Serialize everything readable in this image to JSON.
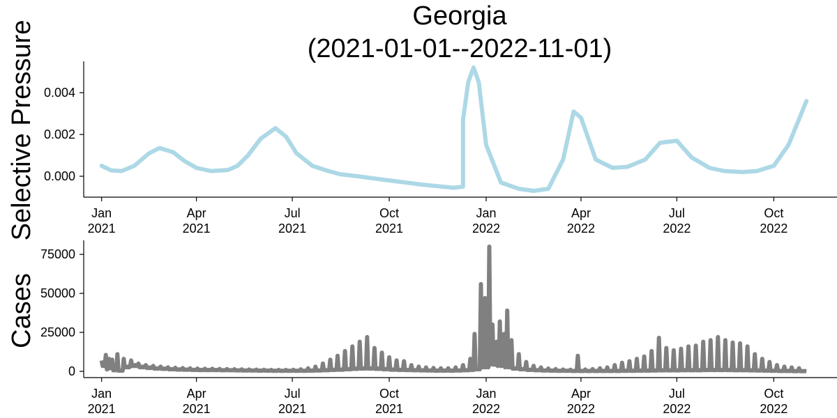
{
  "title": "Georgia",
  "subtitle": "(2021-01-01--2022-11-01)",
  "chart_data": [
    {
      "type": "line",
      "ylabel": "Selective Pressure",
      "ylim": [
        -0.001,
        0.0055
      ],
      "xlim": [
        "2020-12-15",
        "2022-11-30"
      ],
      "yticks": [
        0.0,
        0.002,
        0.004
      ],
      "ytick_labels": [
        "0.000",
        "0.002",
        "0.004"
      ],
      "xticks": [
        "2021-01-01",
        "2021-04-01",
        "2021-07-01",
        "2021-10-01",
        "2022-01-01",
        "2022-04-01",
        "2022-07-01",
        "2022-10-01"
      ],
      "xtick_labels": [
        [
          "Jan",
          "2021"
        ],
        [
          "Apr",
          "2021"
        ],
        [
          "Jul",
          "2021"
        ],
        [
          "Oct",
          "2021"
        ],
        [
          "Jan",
          "2022"
        ],
        [
          "Apr",
          "2022"
        ],
        [
          "Jul",
          "2022"
        ],
        [
          "Oct",
          "2022"
        ]
      ],
      "color": "#add8e6",
      "series": [
        {
          "x": [
            "2021-01-01",
            "2021-01-10",
            "2021-01-20",
            "2021-02-01",
            "2021-02-15",
            "2021-02-25",
            "2021-03-10",
            "2021-03-20",
            "2021-04-01",
            "2021-04-15",
            "2021-05-01",
            "2021-05-10",
            "2021-05-20",
            "2021-06-01",
            "2021-06-15",
            "2021-06-25",
            "2021-07-05",
            "2021-07-20",
            "2021-08-01",
            "2021-08-15",
            "2021-09-01",
            "2021-10-01",
            "2021-11-01",
            "2021-12-01",
            "2021-12-10",
            "2021-12-10",
            "2021-12-15",
            "2021-12-20",
            "2021-12-25",
            "2022-01-01",
            "2022-01-15",
            "2022-02-01",
            "2022-02-15",
            "2022-03-01",
            "2022-03-15",
            "2022-03-25",
            "2022-04-01",
            "2022-04-15",
            "2022-05-01",
            "2022-05-15",
            "2022-06-01",
            "2022-06-15",
            "2022-07-01",
            "2022-07-15",
            "2022-08-01",
            "2022-08-15",
            "2022-09-01",
            "2022-09-15",
            "2022-10-01",
            "2022-10-15",
            "2022-11-01"
          ],
          "y": [
            0.0005,
            0.00028,
            0.00025,
            0.0005,
            0.0011,
            0.00135,
            0.00115,
            0.00075,
            0.0004,
            0.00025,
            0.0003,
            0.0005,
            0.001,
            0.0018,
            0.0023,
            0.0019,
            0.0011,
            0.0005,
            0.0003,
            0.0001,
            0.0,
            -0.0002,
            -0.0004,
            -0.00055,
            -0.0005,
            0.0027,
            0.0045,
            0.0052,
            0.0045,
            0.0015,
            -0.0003,
            -0.0006,
            -0.0007,
            -0.0006,
            0.0008,
            0.0031,
            0.0028,
            0.0008,
            0.0004,
            0.00045,
            0.0008,
            0.0016,
            0.0017,
            0.0009,
            0.0004,
            0.00025,
            0.0002,
            0.00025,
            0.0005,
            0.0015,
            0.0036
          ]
        }
      ]
    },
    {
      "type": "line",
      "ylabel": "Cases",
      "ylim": [
        -4000,
        84000
      ],
      "xlim": [
        "2020-12-15",
        "2022-11-30"
      ],
      "yticks": [
        0,
        25000,
        50000,
        75000
      ],
      "ytick_labels": [
        "0",
        "25000",
        "50000",
        "75000"
      ],
      "xticks": [
        "2021-01-01",
        "2021-04-01",
        "2021-07-01",
        "2021-10-01",
        "2022-01-01",
        "2022-04-01",
        "2022-07-01",
        "2022-10-01"
      ],
      "xtick_labels": [
        [
          "Jan",
          "2021"
        ],
        [
          "Apr",
          "2021"
        ],
        [
          "Jul",
          "2021"
        ],
        [
          "Oct",
          "2021"
        ],
        [
          "Jan",
          "2022"
        ],
        [
          "Apr",
          "2022"
        ],
        [
          "Jul",
          "2022"
        ],
        [
          "Oct",
          "2022"
        ]
      ],
      "color": "#808080",
      "start": "2021-01-01",
      "end": "2022-11-01",
      "spikes": [
        [
          "2021-01-01",
          7000,
          4000
        ],
        [
          "2021-01-05",
          10500,
          1500
        ],
        [
          "2021-01-08",
          8000,
          2500
        ],
        [
          "2021-01-11",
          7500,
          800
        ],
        [
          "2021-01-16",
          11000,
          500
        ],
        [
          "2021-01-22",
          8000,
          3000
        ],
        [
          "2021-01-29",
          7000,
          4000
        ],
        [
          "2021-02-05",
          5000,
          3000
        ],
        [
          "2021-02-12",
          4000,
          2500
        ],
        [
          "2021-02-19",
          3500,
          2000
        ],
        [
          "2021-02-26",
          3000,
          1800
        ],
        [
          "2021-03-05",
          2600,
          1500
        ],
        [
          "2021-03-12",
          2300,
          1300
        ],
        [
          "2021-03-19",
          2100,
          1200
        ],
        [
          "2021-03-26",
          2000,
          1000
        ],
        [
          "2021-04-02",
          1800,
          900
        ],
        [
          "2021-04-09",
          1700,
          900
        ],
        [
          "2021-04-16",
          1700,
          900
        ],
        [
          "2021-04-23",
          1600,
          800
        ],
        [
          "2021-04-30",
          1500,
          800
        ],
        [
          "2021-05-07",
          1400,
          700
        ],
        [
          "2021-05-14",
          1300,
          600
        ],
        [
          "2021-05-21",
          1200,
          600
        ],
        [
          "2021-05-28",
          1100,
          500
        ],
        [
          "2021-06-04",
          1000,
          500
        ],
        [
          "2021-06-11",
          900,
          400
        ],
        [
          "2021-06-18",
          900,
          400
        ],
        [
          "2021-06-25",
          900,
          400
        ],
        [
          "2021-07-02",
          1000,
          400
        ],
        [
          "2021-07-09",
          1300,
          400
        ],
        [
          "2021-07-16",
          2000,
          500
        ],
        [
          "2021-07-23",
          3000,
          600
        ],
        [
          "2021-07-30",
          5000,
          800
        ],
        [
          "2021-08-06",
          7500,
          1000
        ],
        [
          "2021-08-13",
          10000,
          1200
        ],
        [
          "2021-08-20",
          13000,
          1500
        ],
        [
          "2021-08-27",
          16000,
          1800
        ],
        [
          "2021-09-03",
          19000,
          2000
        ],
        [
          "2021-09-10",
          22000,
          2000
        ],
        [
          "2021-09-17",
          15000,
          1800
        ],
        [
          "2021-09-24",
          12000,
          1500
        ],
        [
          "2021-10-01",
          9000,
          1200
        ],
        [
          "2021-10-08",
          7000,
          1000
        ],
        [
          "2021-10-15",
          6500,
          900
        ],
        [
          "2021-10-22",
          4000,
          800
        ],
        [
          "2021-10-29",
          3000,
          700
        ],
        [
          "2021-11-05",
          2500,
          600
        ],
        [
          "2021-11-12",
          2200,
          500
        ],
        [
          "2021-11-19",
          2000,
          500
        ],
        [
          "2021-11-26",
          2000,
          500
        ],
        [
          "2021-12-03",
          2500,
          600
        ],
        [
          "2021-12-10",
          4000,
          800
        ],
        [
          "2021-12-17",
          8000,
          1000
        ],
        [
          "2021-12-21",
          24000,
          1500
        ],
        [
          "2021-12-27",
          56000,
          3000
        ],
        [
          "2021-12-31",
          47000,
          3000
        ],
        [
          "2022-01-04",
          80000,
          5000
        ],
        [
          "2022-01-07",
          30000,
          5000
        ],
        [
          "2022-01-11",
          19000,
          4000
        ],
        [
          "2022-01-14",
          32000,
          4000
        ],
        [
          "2022-01-18",
          24000,
          3000
        ],
        [
          "2022-01-21",
          39000,
          3000
        ],
        [
          "2022-01-25",
          20000,
          2000
        ],
        [
          "2022-02-01",
          11000,
          1500
        ],
        [
          "2022-02-08",
          6000,
          1000
        ],
        [
          "2022-02-15",
          3500,
          800
        ],
        [
          "2022-02-22",
          2500,
          600
        ],
        [
          "2022-03-01",
          1800,
          500
        ],
        [
          "2022-03-08",
          1500,
          400
        ],
        [
          "2022-03-15",
          1200,
          400
        ],
        [
          "2022-03-22",
          1000,
          300
        ],
        [
          "2022-03-29",
          10000,
          300
        ],
        [
          "2022-04-05",
          1200,
          300
        ],
        [
          "2022-04-12",
          1500,
          300
        ],
        [
          "2022-04-19",
          2000,
          300
        ],
        [
          "2022-04-26",
          2500,
          300
        ],
        [
          "2022-05-03",
          4000,
          300
        ],
        [
          "2022-05-10",
          5500,
          400
        ],
        [
          "2022-05-17",
          6500,
          400
        ],
        [
          "2022-05-24",
          8000,
          500
        ],
        [
          "2022-05-31",
          9500,
          500
        ],
        [
          "2022-06-07",
          13000,
          600
        ],
        [
          "2022-06-14",
          21500,
          700
        ],
        [
          "2022-06-21",
          15000,
          700
        ],
        [
          "2022-06-28",
          13500,
          700
        ],
        [
          "2022-07-05",
          14500,
          800
        ],
        [
          "2022-07-12",
          16000,
          800
        ],
        [
          "2022-07-19",
          16500,
          800
        ],
        [
          "2022-07-26",
          19000,
          900
        ],
        [
          "2022-08-02",
          20000,
          900
        ],
        [
          "2022-08-09",
          22000,
          900
        ],
        [
          "2022-08-16",
          20000,
          900
        ],
        [
          "2022-08-23",
          18500,
          800
        ],
        [
          "2022-08-30",
          18000,
          800
        ],
        [
          "2022-09-06",
          16000,
          700
        ],
        [
          "2022-09-13",
          11000,
          600
        ],
        [
          "2022-09-20",
          8000,
          500
        ],
        [
          "2022-09-27",
          6000,
          400
        ],
        [
          "2022-10-04",
          4000,
          300
        ],
        [
          "2022-10-11",
          3000,
          300
        ],
        [
          "2022-10-18",
          2500,
          200
        ],
        [
          "2022-10-25",
          2000,
          200
        ]
      ]
    }
  ]
}
